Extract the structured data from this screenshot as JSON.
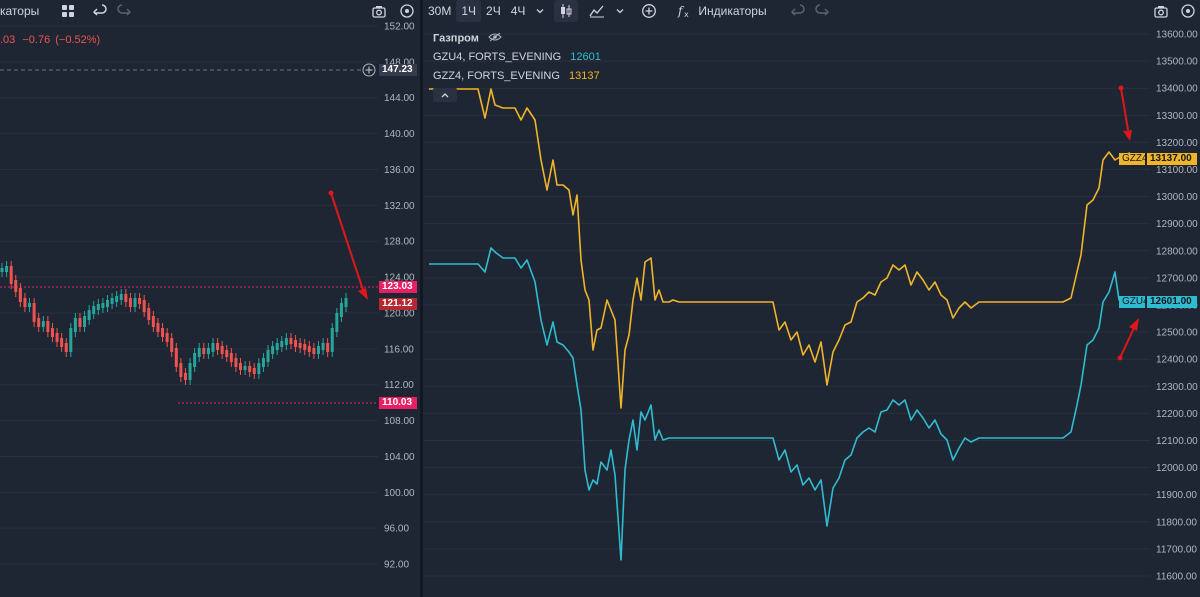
{
  "left": {
    "toolbar": {
      "indicators_label": "каторы"
    },
    "ohlc_change": {
      "partial_value": ".03",
      "change": "−0.76",
      "change_pct": "(−0.52%)"
    },
    "axis_ticks": [
      "152.00",
      "148.00",
      "144.00",
      "140.00",
      "136.00",
      "132.00",
      "128.00",
      "124.00",
      "120.00",
      "116.00",
      "112.00",
      "108.00",
      "104.00",
      "100.00",
      "96.00",
      "92.00"
    ],
    "crosshair_price": "147.23",
    "price_tags": {
      "upper_line": "123.03",
      "last_price": "121.12",
      "lower_line": "110.03"
    },
    "colors": {
      "up": "#26a69a",
      "down": "#ef5350",
      "tag_pink": "#e91e63",
      "tag_last": "#b22833",
      "arrow": "#e0161b"
    }
  },
  "right": {
    "toolbar": {
      "timeframes": [
        "30М",
        "1Ч",
        "2Ч",
        "4Ч"
      ],
      "active_timeframe": "1Ч",
      "indicators_label": "Индикаторы"
    },
    "legend": {
      "main_title": "Газпром",
      "series": [
        {
          "name": "GZU4, FORTS_EVENING",
          "value": "12601",
          "color": "#30bcd0"
        },
        {
          "name": "GZZ4, FORTS_EVENING",
          "value": "13137",
          "color": "#f0b429"
        }
      ]
    },
    "axis_ticks": [
      "13600.00",
      "13500.00",
      "13400.00",
      "13300.00",
      "13200.00",
      "13100.00",
      "13000.00",
      "12900.00",
      "12800.00",
      "12700.00",
      "12600.00",
      "12500.00",
      "12400.00",
      "12300.00",
      "12200.00",
      "12100.00",
      "12000.00",
      "11900.00",
      "11800.00",
      "11700.00",
      "11600.00"
    ],
    "price_tags": {
      "gzz4": {
        "symbol": "GZZ4",
        "price": "13137.00"
      },
      "gzu4": {
        "symbol": "GZU4",
        "price": "12601.00"
      }
    },
    "colors": {
      "gzz4": "#f0b429",
      "gzu4": "#30bcd0",
      "arrow": "#e0161b"
    }
  }
}
